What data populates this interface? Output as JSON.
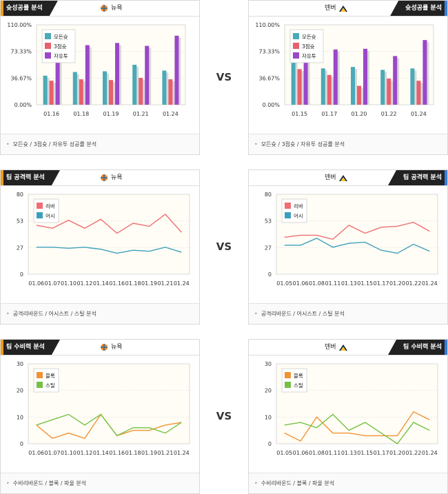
{
  "vs_label": "VS",
  "teams": {
    "left": "뉴욕",
    "right": "덴버"
  },
  "colors": {
    "all_shot": "#4aaab8",
    "three": "#e8606e",
    "free_throw": "#9b47c9",
    "rebound": "#ee6e73",
    "assist": "#3e9fbd",
    "block": "#f39233",
    "steal": "#76c043",
    "plot_bg": "#fffdf5",
    "grid": "#dcdcdc"
  },
  "sections": [
    {
      "title": "슛성공률 분석",
      "footer": "모든슛 / 3점슛 / 자유투 성공률 분석",
      "chart_data": [
        {
          "type": "bar",
          "team": "뉴욕",
          "categories": [
            "01.16",
            "01.18",
            "01.19",
            "01.21",
            "01.24"
          ],
          "y_ticks": [
            "110.00%",
            "73.33%",
            "36.67%",
            "0.00%"
          ],
          "ylim": [
            0,
            110
          ],
          "legend": [
            "모든슛",
            "3점슛",
            "자유투"
          ],
          "legend_position": "top-left",
          "series": [
            {
              "name": "모든슛",
              "values": [
                40,
                45,
                46,
                55,
                47
              ]
            },
            {
              "name": "3점슛",
              "values": [
                33,
                35,
                34,
                37,
                35
              ]
            },
            {
              "name": "자유투",
              "values": [
                85,
                82,
                85,
                81,
                95
              ]
            }
          ]
        },
        {
          "type": "bar",
          "team": "덴버",
          "categories": [
            "01.15",
            "01.17",
            "01.20",
            "01.22",
            "01.24"
          ],
          "y_ticks": [
            "110.00%",
            "73.33%",
            "36.67%",
            "0.00%"
          ],
          "ylim": [
            0,
            110
          ],
          "legend": [
            "모든슛",
            "3점슛",
            "자유투"
          ],
          "legend_position": "top-left",
          "series": [
            {
              "name": "모든슛",
              "values": [
                64,
                50,
                52,
                48,
                50
              ]
            },
            {
              "name": "3점슛",
              "values": [
                49,
                41,
                26,
                36,
                33
              ]
            },
            {
              "name": "자유투",
              "values": [
                85,
                76,
                77,
                67,
                89
              ]
            }
          ]
        }
      ]
    },
    {
      "title": "팀 공격력 분석",
      "footer": "공격리바운드 / 어시스트 / 스틸 분석",
      "chart_data": [
        {
          "type": "line",
          "team": "뉴욕",
          "categories": [
            "01.06",
            "01.07",
            "01.10",
            "01.12",
            "01.14",
            "01.16",
            "01.18",
            "01.19",
            "01.21",
            "01.24"
          ],
          "y_ticks": [
            "80",
            "53",
            "27",
            "0"
          ],
          "ylim": [
            0,
            80
          ],
          "legend": [
            "리바",
            "어시"
          ],
          "legend_position": "top-left",
          "series": [
            {
              "name": "리바",
              "values": [
                49,
                46,
                54,
                46,
                55,
                41,
                51,
                48,
                60,
                42
              ]
            },
            {
              "name": "어시",
              "values": [
                27,
                27,
                26,
                27,
                25,
                21,
                24,
                23,
                27,
                22
              ]
            }
          ]
        },
        {
          "type": "line",
          "team": "덴버",
          "categories": [
            "01.05",
            "01.06",
            "01.08",
            "01.11",
            "01.13",
            "01.15",
            "01.17",
            "01.20",
            "01.22",
            "01.24"
          ],
          "y_ticks": [
            "80",
            "53",
            "27",
            "0"
          ],
          "ylim": [
            0,
            80
          ],
          "legend": [
            "리바",
            "어시"
          ],
          "legend_position": "top-left",
          "series": [
            {
              "name": "리바",
              "values": [
                37,
                39,
                39,
                35,
                49,
                41,
                47,
                48,
                52,
                43
              ]
            },
            {
              "name": "어시",
              "values": [
                29,
                29,
                36,
                27,
                31,
                32,
                24,
                21,
                30,
                23
              ]
            }
          ]
        }
      ]
    },
    {
      "title": "팀 수비력 분석",
      "footer": "수비리바운드 / 블록 / 파울 분석",
      "chart_data": [
        {
          "type": "line",
          "team": "뉴욕",
          "categories": [
            "01.06",
            "01.07",
            "01.10",
            "01.12",
            "01.14",
            "01.16",
            "01.18",
            "01.19",
            "01.21",
            "01.24"
          ],
          "y_ticks": [
            "30",
            "20",
            "10",
            "0"
          ],
          "ylim": [
            0,
            30
          ],
          "legend": [
            "블록",
            "스틸"
          ],
          "legend_position": "top-left",
          "series": [
            {
              "name": "블록",
              "values": [
                7,
                2,
                4,
                2,
                11,
                3,
                5,
                5,
                7,
                8
              ]
            },
            {
              "name": "스틸",
              "values": [
                7,
                9,
                11,
                7,
                11,
                3,
                6,
                6,
                4,
                8
              ]
            }
          ]
        },
        {
          "type": "line",
          "team": "덴버",
          "categories": [
            "01.05",
            "01.06",
            "01.08",
            "01.11",
            "01.13",
            "01.15",
            "01.17",
            "01.20",
            "01.22",
            "01.24"
          ],
          "y_ticks": [
            "30",
            "20",
            "10",
            "0"
          ],
          "ylim": [
            0,
            30
          ],
          "legend": [
            "블록",
            "스틸"
          ],
          "legend_position": "top-left",
          "series": [
            {
              "name": "블록",
              "values": [
                4,
                1,
                10,
                4,
                4,
                3,
                3,
                3,
                12,
                9
              ]
            },
            {
              "name": "스틸",
              "values": [
                7,
                8,
                6,
                11,
                5,
                8,
                4,
                0,
                8,
                5
              ]
            }
          ]
        }
      ]
    }
  ]
}
